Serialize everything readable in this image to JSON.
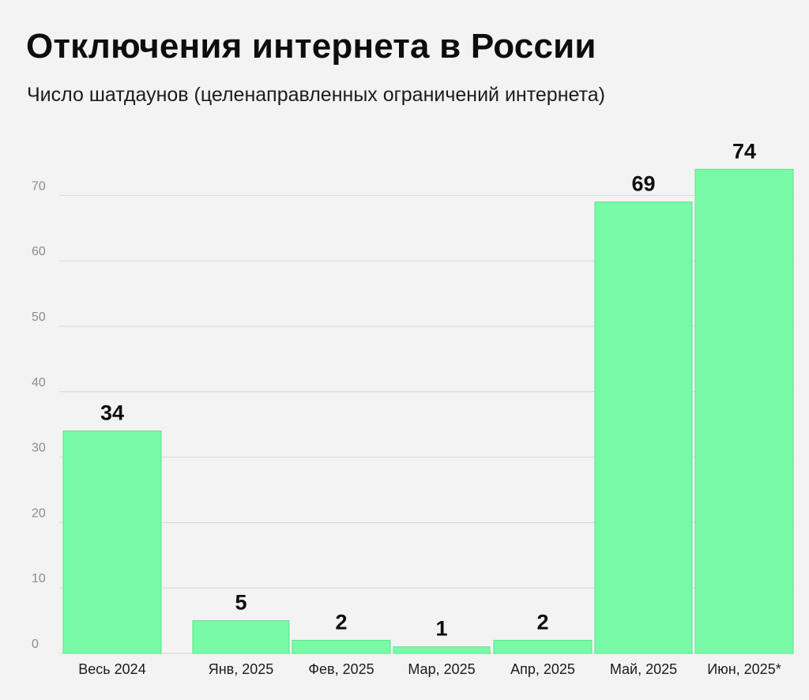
{
  "chart_data": {
    "type": "bar",
    "title": "Отключения интернета в России",
    "subtitle": "Число шатдаунов (целенаправленных ограничений интернета)",
    "categories": [
      "Весь 2024",
      "Янв, 2025",
      "Фев, 2025",
      "Мар, 2025",
      "Апр, 2025",
      "Май, 2025",
      "Июн, 2025*"
    ],
    "values": [
      34,
      5,
      2,
      1,
      2,
      69,
      74
    ],
    "data_labels": [
      "34",
      "5",
      "2",
      "1",
      "2",
      "69",
      "74"
    ],
    "yticks": [
      0,
      10,
      20,
      30,
      40,
      50,
      60,
      70
    ],
    "ytick_labels": [
      "0",
      "10",
      "20",
      "30",
      "40",
      "50",
      "60",
      "70"
    ],
    "ylim": [
      0,
      74
    ],
    "xlabel": "",
    "ylabel": "",
    "grid": true,
    "legend": "none",
    "bar_color": "#78fba6",
    "bar_border_color": "#5ee08c",
    "grid_color": "#d6d6d6",
    "background": "#f3f3f3"
  }
}
